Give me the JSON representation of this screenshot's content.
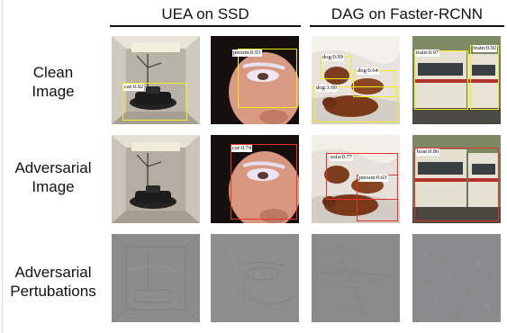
{
  "header": {
    "col_group_1": "UEA on SSD",
    "col_group_2": "DAG on Faster-RCNN"
  },
  "rows": {
    "clean": [
      "Clean",
      "Image"
    ],
    "adversarial": [
      "Adversarial",
      "Image"
    ],
    "perturbation": [
      "Adversarial",
      "Pertubations"
    ]
  },
  "detections": {
    "clean_car": "car:0.92",
    "clean_person": "person:0.93",
    "clean_dog1": "dog:0.99",
    "clean_dog2": "dog:0.64",
    "clean_dog3": "dog:1.00",
    "clean_train1": "train:0.97",
    "clean_train2": "train:0.92",
    "adv_car": "car:0.74",
    "adv_sofa": "sofa:0.77",
    "adv_person": "person:0.63",
    "adv_boat": "boat:0.86"
  },
  "colors": {
    "clean_box": "#f2ec1c",
    "adversarial_box": "#e8332a",
    "perturbation_gray": "#8c8c8c"
  }
}
